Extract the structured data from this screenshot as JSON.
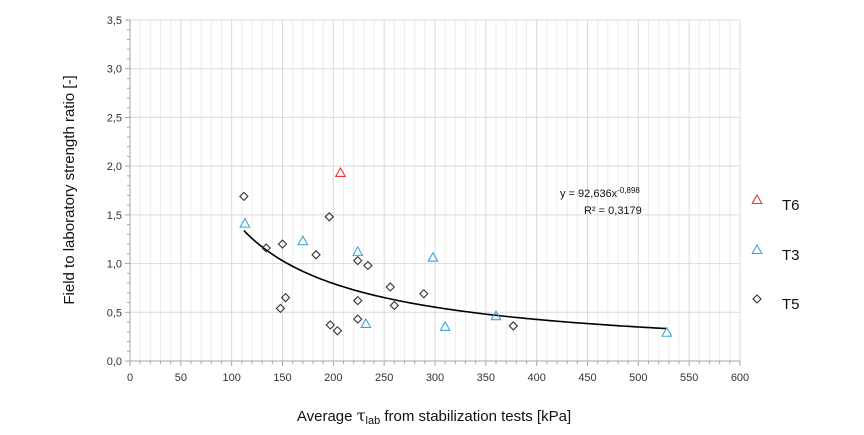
{
  "chart_data": {
    "type": "scatter",
    "title": "",
    "xlabel_prefix": "Average ",
    "xlabel_symbol": "τ",
    "xlabel_subscript": "lab",
    "xlabel_suffix": " from stabilization tests [kPa]",
    "ylabel": "Field to laboratory strength ratio [-]",
    "xlim": [
      0,
      600
    ],
    "ylim": [
      0,
      3.5
    ],
    "x_ticks": [
      0,
      50,
      100,
      150,
      200,
      250,
      300,
      350,
      400,
      450,
      500,
      550,
      600
    ],
    "x_tick_labels": [
      "0",
      "50",
      "100",
      "150",
      "200",
      "250",
      "300",
      "350",
      "400",
      "450",
      "500",
      "550",
      "600"
    ],
    "y_ticks": [
      0,
      0.5,
      1.0,
      1.5,
      2.0,
      2.5,
      3.0,
      3.5
    ],
    "y_tick_labels": [
      "0,0",
      "0,5",
      "1,0",
      "1,5",
      "2,0",
      "2,5",
      "3,0",
      "3,5"
    ],
    "grid": true,
    "legend_position": "right",
    "series": [
      {
        "name": "T6",
        "marker": "triangle",
        "color": "#e8343c",
        "points": [
          [
            207,
            1.93
          ]
        ]
      },
      {
        "name": "T3",
        "marker": "triangle",
        "color": "#3aa7d9",
        "points": [
          [
            113,
            1.41
          ],
          [
            170,
            1.23
          ],
          [
            224,
            1.12
          ],
          [
            232,
            0.38
          ],
          [
            298,
            1.06
          ],
          [
            310,
            0.35
          ],
          [
            360,
            0.46
          ],
          [
            528,
            0.29
          ]
        ]
      },
      {
        "name": "T5",
        "marker": "diamond",
        "color": "#333333",
        "points": [
          [
            112,
            1.69
          ],
          [
            134,
            1.16
          ],
          [
            148,
            0.54
          ],
          [
            150,
            1.2
          ],
          [
            153,
            0.65
          ],
          [
            183,
            1.09
          ],
          [
            196,
            1.48
          ],
          [
            197,
            0.37
          ],
          [
            204,
            0.31
          ],
          [
            224,
            1.03
          ],
          [
            224,
            0.62
          ],
          [
            224,
            0.43
          ],
          [
            234,
            0.98
          ],
          [
            256,
            0.76
          ],
          [
            260,
            0.57
          ],
          [
            289,
            0.69
          ],
          [
            377,
            0.36
          ]
        ]
      }
    ],
    "trendline": {
      "type": "power",
      "a": 92.636,
      "b": -0.898,
      "x_range": [
        112,
        528
      ],
      "color": "#000000"
    },
    "annotation": {
      "eq_prefix": "y = 92,636x",
      "eq_exponent": "-0,898",
      "r2_label": "R² = 0,3179"
    }
  }
}
